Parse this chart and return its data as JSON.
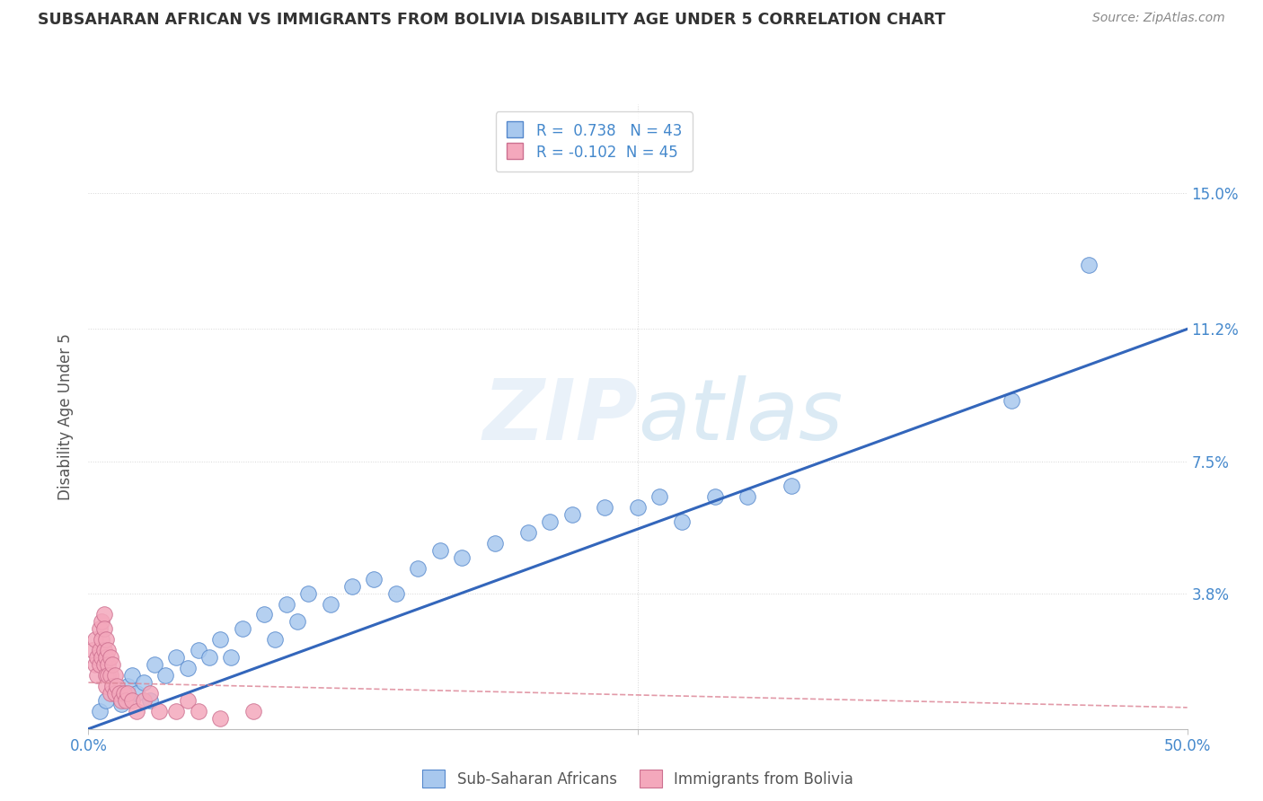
{
  "title": "SUBSAHARAN AFRICAN VS IMMIGRANTS FROM BOLIVIA DISABILITY AGE UNDER 5 CORRELATION CHART",
  "source": "Source: ZipAtlas.com",
  "ylabel": "Disability Age Under 5",
  "xlim": [
    0.0,
    0.5
  ],
  "ylim": [
    0.0,
    0.175
  ],
  "ytick_positions": [
    0.0,
    0.038,
    0.075,
    0.112,
    0.15
  ],
  "ytick_labels": [
    "",
    "3.8%",
    "7.5%",
    "11.2%",
    "15.0%"
  ],
  "r_blue": 0.738,
  "n_blue": 43,
  "r_pink": -0.102,
  "n_pink": 45,
  "blue_color": "#A8C8EE",
  "pink_color": "#F4A8BC",
  "blue_edge_color": "#5588CC",
  "pink_edge_color": "#CC7090",
  "blue_line_color": "#3366BB",
  "pink_line_color": "#DD8899",
  "watermark_color": "#C8DCF0",
  "legend_label_blue": "Sub-Saharan Africans",
  "legend_label_pink": "Immigrants from Bolivia",
  "blue_scatter_x": [
    0.005,
    0.008,
    0.012,
    0.015,
    0.018,
    0.02,
    0.022,
    0.025,
    0.028,
    0.03,
    0.035,
    0.04,
    0.045,
    0.05,
    0.055,
    0.06,
    0.065,
    0.07,
    0.08,
    0.085,
    0.09,
    0.095,
    0.1,
    0.11,
    0.12,
    0.13,
    0.14,
    0.15,
    0.16,
    0.17,
    0.185,
    0.2,
    0.21,
    0.22,
    0.235,
    0.25,
    0.26,
    0.27,
    0.285,
    0.3,
    0.32,
    0.42,
    0.455
  ],
  "blue_scatter_y": [
    0.005,
    0.008,
    0.01,
    0.007,
    0.012,
    0.015,
    0.01,
    0.013,
    0.008,
    0.018,
    0.015,
    0.02,
    0.017,
    0.022,
    0.02,
    0.025,
    0.02,
    0.028,
    0.032,
    0.025,
    0.035,
    0.03,
    0.038,
    0.035,
    0.04,
    0.042,
    0.038,
    0.045,
    0.05,
    0.048,
    0.052,
    0.055,
    0.058,
    0.06,
    0.062,
    0.062,
    0.065,
    0.058,
    0.065,
    0.065,
    0.068,
    0.092,
    0.13
  ],
  "pink_scatter_x": [
    0.002,
    0.003,
    0.003,
    0.004,
    0.004,
    0.005,
    0.005,
    0.005,
    0.006,
    0.006,
    0.006,
    0.007,
    0.007,
    0.007,
    0.007,
    0.008,
    0.008,
    0.008,
    0.008,
    0.009,
    0.009,
    0.009,
    0.01,
    0.01,
    0.01,
    0.011,
    0.011,
    0.012,
    0.012,
    0.013,
    0.014,
    0.015,
    0.016,
    0.017,
    0.018,
    0.02,
    0.022,
    0.025,
    0.028,
    0.032,
    0.04,
    0.045,
    0.05,
    0.06,
    0.075
  ],
  "pink_scatter_y": [
    0.022,
    0.018,
    0.025,
    0.02,
    0.015,
    0.028,
    0.022,
    0.018,
    0.03,
    0.025,
    0.02,
    0.032,
    0.028,
    0.022,
    0.018,
    0.025,
    0.02,
    0.015,
    0.012,
    0.022,
    0.018,
    0.015,
    0.02,
    0.015,
    0.01,
    0.018,
    0.012,
    0.015,
    0.01,
    0.012,
    0.01,
    0.008,
    0.01,
    0.008,
    0.01,
    0.008,
    0.005,
    0.008,
    0.01,
    0.005,
    0.005,
    0.008,
    0.005,
    0.003,
    0.005
  ],
  "blue_line_x": [
    0.0,
    0.5
  ],
  "blue_line_y": [
    0.0,
    0.112
  ],
  "pink_line_x": [
    0.0,
    0.5
  ],
  "pink_line_y": [
    0.013,
    0.006
  ],
  "background_color": "#FFFFFF",
  "grid_color": "#CCCCCC"
}
